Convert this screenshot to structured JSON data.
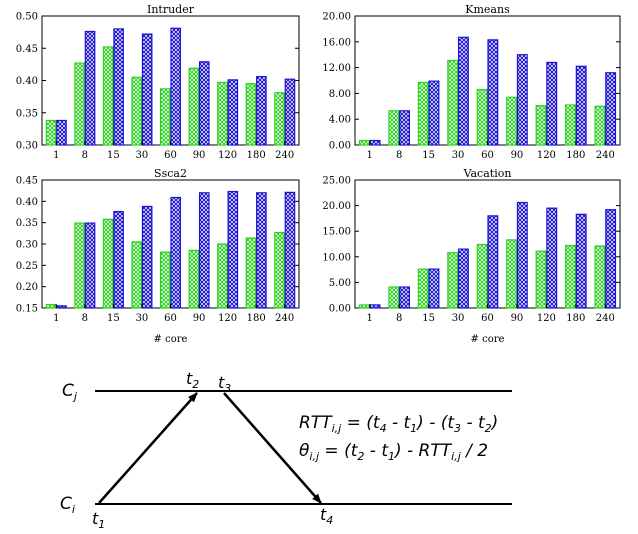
{
  "chart_data": [
    {
      "type": "bar",
      "title": "Intruder",
      "xlabel": "",
      "ylabel": "",
      "categories": [
        "1",
        "8",
        "15",
        "30",
        "60",
        "90",
        "120",
        "180",
        "240"
      ],
      "ylim": [
        0.3,
        0.5
      ],
      "yticks": [
        "0.30",
        "0.35",
        "0.40",
        "0.45",
        "0.50"
      ],
      "series": [
        {
          "name": "green",
          "values": [
            0.338,
            0.427,
            0.452,
            0.405,
            0.387,
            0.419,
            0.397,
            0.395,
            0.381
          ]
        },
        {
          "name": "blue",
          "values": [
            0.338,
            0.476,
            0.48,
            0.472,
            0.481,
            0.429,
            0.401,
            0.406,
            0.402
          ]
        }
      ]
    },
    {
      "type": "bar",
      "title": "Kmeans",
      "xlabel": "",
      "ylabel": "",
      "categories": [
        "1",
        "8",
        "15",
        "30",
        "60",
        "90",
        "120",
        "180",
        "240"
      ],
      "ylim": [
        0,
        20
      ],
      "yticks": [
        "0.00",
        "4.00",
        "8.00",
        "12.00",
        "16.00",
        "20.00"
      ],
      "series": [
        {
          "name": "green",
          "values": [
            0.7,
            5.3,
            9.7,
            13.1,
            8.6,
            7.4,
            6.1,
            6.2,
            6.0
          ]
        },
        {
          "name": "blue",
          "values": [
            0.7,
            5.3,
            9.9,
            16.7,
            16.3,
            14.0,
            12.8,
            12.2,
            11.2
          ]
        }
      ]
    },
    {
      "type": "bar",
      "title": "Ssca2",
      "xlabel": "# core",
      "ylabel": "",
      "categories": [
        "1",
        "8",
        "15",
        "30",
        "60",
        "90",
        "120",
        "180",
        "240"
      ],
      "ylim": [
        0.15,
        0.45
      ],
      "yticks": [
        "0.15",
        "0.20",
        "0.25",
        "0.30",
        "0.35",
        "0.40",
        "0.45"
      ],
      "series": [
        {
          "name": "green",
          "values": [
            0.158,
            0.349,
            0.358,
            0.305,
            0.281,
            0.285,
            0.3,
            0.314,
            0.327
          ]
        },
        {
          "name": "blue",
          "values": [
            0.155,
            0.349,
            0.376,
            0.388,
            0.409,
            0.42,
            0.423,
            0.42,
            0.421
          ]
        }
      ]
    },
    {
      "type": "bar",
      "title": "Vacation",
      "xlabel": "# core",
      "ylabel": "",
      "categories": [
        "1",
        "8",
        "15",
        "30",
        "60",
        "90",
        "120",
        "180",
        "240"
      ],
      "ylim": [
        0,
        25
      ],
      "yticks": [
        "0.00",
        "5.00",
        "10.00",
        "15.00",
        "20.00",
        "25.00"
      ],
      "series": [
        {
          "name": "green",
          "values": [
            0.6,
            4.1,
            7.6,
            10.8,
            12.4,
            13.3,
            11.1,
            12.2,
            12.1
          ]
        },
        {
          "name": "blue",
          "values": [
            0.6,
            4.1,
            7.6,
            11.5,
            18.0,
            20.6,
            19.5,
            18.3,
            19.2
          ]
        }
      ]
    }
  ],
  "colors": {
    "green": "#2cd11f",
    "blue": "#1a12d4"
  },
  "diagram": {
    "top_node": "C",
    "top_node_sub": "j",
    "bottom_node": "C",
    "bottom_node_sub": "i",
    "t1": "t",
    "t1_sub": "1",
    "t2": "t",
    "t2_sub": "2",
    "t3": "t",
    "t3_sub": "3",
    "t4": "t",
    "t4_sub": "4",
    "eq1_lhs": "RTT",
    "eq1_lhs_sub": "i,j",
    "eq1_p1": " = (t",
    "eq1_p1_sub": "4",
    "eq1_p2": " - t",
    "eq1_p2_sub": "1",
    "eq1_p3": ") - (t",
    "eq1_p3_sub": "3",
    "eq1_p4": " - t",
    "eq1_p4_sub": "2",
    "eq1_p5": ")",
    "eq2_lhs": "θ",
    "eq2_lhs_sub": "i,j",
    "eq2_p1": " = (t",
    "eq2_p1_sub": "2",
    "eq2_p2": " - t",
    "eq2_p2_sub": "1",
    "eq2_p3": ") - RTT",
    "eq2_p3_sub": "i,j",
    "eq2_p4": " / 2"
  }
}
